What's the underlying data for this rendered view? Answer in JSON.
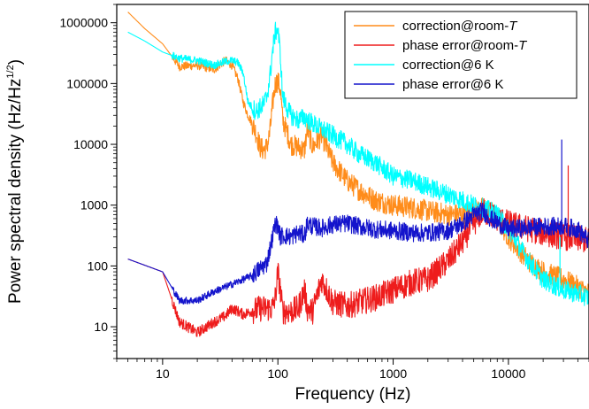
{
  "chart_data": {
    "type": "line",
    "title": "",
    "xlabel": "Frequency (Hz)",
    "ylabel": {
      "text": "Power spectral density (Hz/Hz",
      "superscript": "1/2",
      "suffix": ")"
    },
    "xscale": "log",
    "yscale": "log",
    "xlim": [
      4,
      50000
    ],
    "ylim": [
      3,
      2000000
    ],
    "x_major_ticks": [
      {
        "value": 10,
        "label": "10"
      },
      {
        "value": 100,
        "label": "100"
      },
      {
        "value": 1000,
        "label": "1000"
      },
      {
        "value": 10000,
        "label": "10000"
      }
    ],
    "y_major_ticks": [
      {
        "value": 10,
        "label": "10"
      },
      {
        "value": 100,
        "label": "100"
      },
      {
        "value": 1000,
        "label": "1000"
      },
      {
        "value": 10000,
        "label": "10000"
      },
      {
        "value": 100000,
        "label": "100000"
      },
      {
        "value": 1000000,
        "label": "1000000"
      }
    ],
    "legend_position": "top-right",
    "series": [
      {
        "name": "correction@room-T",
        "label_main": "correction@room-",
        "label_italic": "T",
        "color": "#ff8c1a",
        "x": [
          5,
          7,
          10,
          14,
          20,
          28,
          35,
          40,
          45,
          50,
          55,
          60,
          65,
          70,
          75,
          80,
          85,
          90,
          95,
          100,
          105,
          110,
          120,
          130,
          150,
          170,
          180,
          200,
          240,
          300,
          400,
          500,
          700,
          1000,
          1500,
          2000,
          3000,
          4000,
          5000,
          6000,
          7000,
          8000,
          10000,
          15000,
          20000,
          30000,
          40000,
          50000
        ],
        "y": [
          1500000,
          800000,
          450000,
          190000,
          200000,
          170000,
          240000,
          200000,
          120000,
          50000,
          30000,
          22000,
          15000,
          9000,
          8000,
          9000,
          15000,
          45000,
          100000,
          110000,
          80000,
          25000,
          16000,
          10000,
          9000,
          8000,
          18000,
          9000,
          14000,
          5000,
          2500,
          1800,
          1200,
          1000,
          900,
          800,
          700,
          700,
          800,
          900,
          800,
          600,
          300,
          120,
          80,
          60,
          45,
          35
        ],
        "noise": 0.18
      },
      {
        "name": "phase error@room-T",
        "label_main": "phase error@room-",
        "label_italic": "T",
        "color": "#ee1c1c",
        "x": [
          5,
          10,
          14,
          20,
          28,
          35,
          40,
          45,
          50,
          60,
          70,
          80,
          90,
          95,
          100,
          105,
          110,
          130,
          150,
          170,
          180,
          200,
          240,
          300,
          400,
          500,
          700,
          1000,
          1500,
          2000,
          3000,
          4000,
          5000,
          6000,
          7000,
          10000,
          20000,
          30000,
          40000,
          50000
        ],
        "y": [
          130,
          80,
          12,
          8,
          12,
          15,
          20,
          18,
          16,
          18,
          20,
          20,
          20,
          30,
          80,
          40,
          18,
          18,
          20,
          40,
          20,
          18,
          60,
          25,
          22,
          25,
          30,
          40,
          55,
          60,
          120,
          250,
          500,
          800,
          700,
          500,
          350,
          300,
          280,
          260
        ],
        "noise": 0.22
      },
      {
        "name": "correction@6 K",
        "label_main": "correction@6 K",
        "label_italic": "",
        "color": "#00ffff",
        "x": [
          5,
          7,
          10,
          14,
          20,
          28,
          35,
          40,
          45,
          50,
          55,
          60,
          65,
          70,
          75,
          80,
          85,
          90,
          95,
          100,
          105,
          110,
          120,
          130,
          150,
          170,
          200,
          300,
          400,
          500,
          700,
          1000,
          1500,
          2000,
          3000,
          4000,
          5000,
          6000,
          7000,
          8000,
          10000,
          15000,
          20000,
          30000,
          40000,
          50000
        ],
        "y": [
          700000,
          500000,
          330000,
          260000,
          240000,
          200000,
          230000,
          240000,
          220000,
          150000,
          50000,
          40000,
          35000,
          40000,
          45000,
          60000,
          120000,
          350000,
          700000,
          800000,
          300000,
          60000,
          40000,
          30000,
          25000,
          28000,
          22000,
          14000,
          10000,
          7000,
          5000,
          3000,
          2500,
          2000,
          1500,
          1200,
          1000,
          900,
          800,
          700,
          400,
          120,
          60,
          40,
          35,
          30
        ],
        "noise": 0.16
      },
      {
        "name": "phase error@6 K",
        "label_main": "phase error@6 K",
        "label_italic": "",
        "color": "#1414cc",
        "x": [
          5,
          10,
          14,
          20,
          28,
          35,
          40,
          45,
          50,
          60,
          70,
          80,
          90,
          95,
          100,
          105,
          110,
          130,
          150,
          170,
          180,
          200,
          240,
          300,
          400,
          500,
          700,
          1000,
          1500,
          2000,
          3000,
          4000,
          5000,
          6000,
          7000,
          10000,
          20000,
          30000,
          40000,
          50000
        ],
        "y": [
          130,
          80,
          27,
          27,
          38,
          45,
          50,
          55,
          60,
          70,
          90,
          110,
          300,
          500,
          450,
          300,
          320,
          300,
          350,
          320,
          500,
          450,
          420,
          480,
          500,
          450,
          400,
          380,
          350,
          350,
          380,
          500,
          700,
          800,
          600,
          400,
          450,
          450,
          400,
          250
        ],
        "noise": 0.15
      }
    ],
    "spikes": [
      {
        "series": "phase error@6 K",
        "x": 29000,
        "y": 12000
      },
      {
        "series": "phase error@room-T",
        "x": 33000,
        "y": 4500
      },
      {
        "series": "correction@6 K",
        "x": 28000,
        "y": 300
      }
    ]
  }
}
